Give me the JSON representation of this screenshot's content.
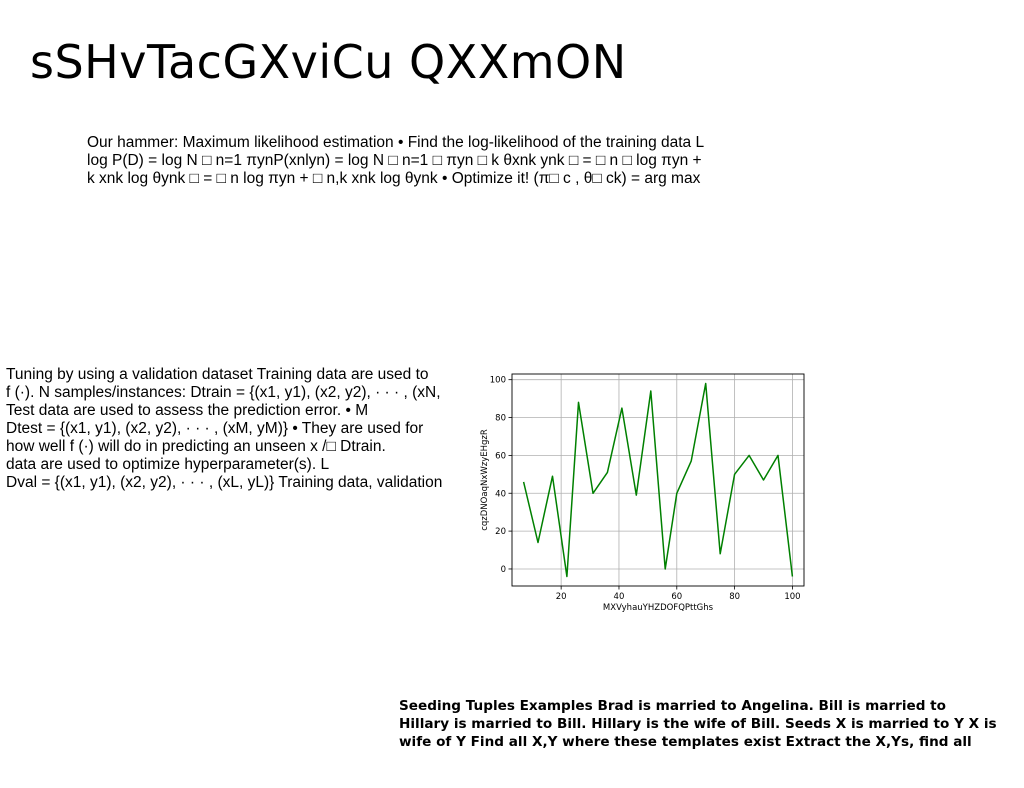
{
  "slide": {
    "title": "sSHvTacGXviCu QXXmON"
  },
  "text_blocks": {
    "mle": [
      "Our hammer: Maximum likelihood estimation • Find the log-likelihood of the training data L",
      "log P(D) = log N □ n=1 πynP(xnlyn) = log N □ n=1 □ πyn □ k θxnk ynk □ = □ n □ log πyn +",
      "k xnk log θynk □ = □ n log πyn + □ n,k xnk log θynk • Optimize it! (π□ c , θ□ ck) = arg max"
    ],
    "validation": [
      "Tuning by using a validation dataset Training data are used to",
      "f (·). N samples/instances: Dtrain = {(x1, y1), (x2, y2), · · · , (xN,",
      "Test data are used to assess the prediction error. • M",
      "Dtest = {(x1, y1), (x2, y2), · · · , (xM, yM)} • They are used for",
      "how well f (·) will do in predicting an unseen x /□ Dtrain.",
      "data are used to optimize hyperparameter(s). L",
      "Dval = {(x1, y1), (x2, y2), · · · , (xL, yL)} Training data, validation"
    ],
    "seeding": [
      "Seeding Tuples Examples Brad is married to Angelina. Bill is married to",
      "Hillary is married to Bill. Hillary is the wife of Bill. Seeds X is married to Y X is",
      "wife of Y Find all X,Y where these templates exist Extract the X,Ys, find all"
    ]
  },
  "chart_data": {
    "type": "line",
    "title": "",
    "xlabel": "MXVyhauYHZDOFQPttGhs",
    "ylabel": "cqzDNOaqNxWzyEHgzR",
    "x": [
      7,
      12,
      17,
      22,
      26,
      31,
      36,
      41,
      46,
      51,
      56,
      60,
      65,
      70,
      75,
      80,
      85,
      90,
      95,
      100
    ],
    "series": [
      {
        "values": [
          46,
          14,
          49,
          -4,
          88,
          40,
          51,
          85,
          39,
          94,
          0,
          40,
          57,
          98,
          8,
          50,
          60,
          47,
          60,
          -4
        ],
        "color": "#008000"
      }
    ],
    "xlim": [
      3,
      104
    ],
    "ylim": [
      -9,
      103
    ],
    "xticks": [
      20,
      40,
      60,
      80,
      100
    ],
    "yticks": [
      0,
      20,
      40,
      60,
      80,
      100
    ],
    "grid": true,
    "grid_color": "#b0b0b0"
  }
}
